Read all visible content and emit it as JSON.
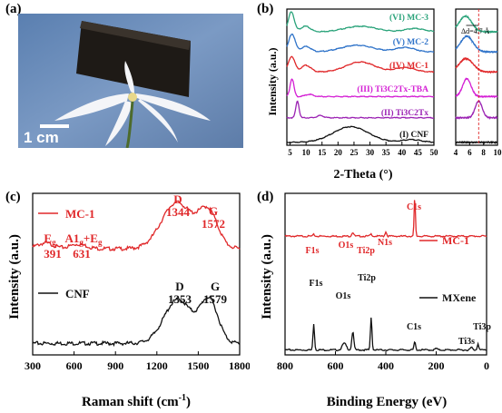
{
  "panels": {
    "a": {
      "label": "(a)",
      "scalebar": "1 cm"
    },
    "b": {
      "label": "(b)",
      "ylabel": "Intensity (a.u.)",
      "xlabel": "2-Theta (°)",
      "annotation": "Δd=4.7 Å",
      "colors": {
        "MC3": "#2aa37a",
        "MC2": "#2f73c9",
        "MC1": "#e0282a",
        "TBA": "#d41fd4",
        "TiCT": "#9b22b3",
        "CNF": "#111111"
      }
    },
    "c": {
      "label": "(c)",
      "ylabel": "Intensity (a.u.)",
      "xlabel": "Raman shift (cm",
      "xlabel_sup": "-1",
      "xlabel_end": ")",
      "peaks_mc1": {
        "D": "D",
        "D_val": "1344",
        "G": "G",
        "G_val": "1572",
        "Eg": "E",
        "Eg_sub": "g",
        "Eg_val": "391",
        "A1g": "A1",
        "A1g_sub": "g",
        "A1g_plus": "+E",
        "A1g_sub2": "g",
        "A1g_val": "631"
      },
      "peaks_cnf": {
        "D": "D",
        "D_val": "1353",
        "G": "G",
        "G_val": "1579"
      }
    },
    "d": {
      "label": "(d)",
      "ylabel": "Intensity (a.u.)",
      "xlabel": "Binding Energy (eV)",
      "mc1_labels": {
        "C1s": "C1s",
        "F1s": "F1s",
        "O1s": "O1s",
        "Ti2p": "Ti2p",
        "N1s": "N1s"
      },
      "mx_labels": {
        "F1s": "F1s",
        "O1s": "O1s",
        "Ti2p": "Ti2p",
        "C1s": "C1s",
        "Ti3s": "Ti3s",
        "Ti3p": "Ti3p"
      }
    }
  },
  "chart_data": [
    {
      "panel": "b-main",
      "type": "line",
      "xlabel": "2-Theta (°)",
      "ylabel": "Intensity (a.u.)",
      "xlim": [
        4,
        50
      ],
      "xticks": [
        5,
        10,
        15,
        20,
        25,
        30,
        35,
        40,
        45,
        50
      ],
      "series": [
        {
          "name": "(VI) MC-3",
          "color": "#2aa37a",
          "offset": 5.0,
          "peaks": [
            [
              5.4,
              0.9,
              0.9
            ],
            [
              9.8,
              0.25,
              1.5
            ],
            [
              27,
              0.25,
              5
            ],
            [
              44,
              0.15,
              3
            ]
          ]
        },
        {
          "name": "(V) MC-2",
          "color": "#2f73c9",
          "offset": 4.1,
          "peaks": [
            [
              5.6,
              0.8,
              1.0
            ],
            [
              10,
              0.25,
              1.5
            ],
            [
              26,
              0.3,
              5
            ],
            [
              41,
              0.2,
              3
            ]
          ]
        },
        {
          "name": "(IV) MC-1",
          "color": "#e0282a",
          "offset": 3.2,
          "peaks": [
            [
              5.5,
              0.7,
              1.0
            ],
            [
              10,
              0.3,
              1.5
            ],
            [
              27,
              0.45,
              4.5
            ],
            [
              41,
              0.2,
              3
            ]
          ]
        },
        {
          "name": "(III) Ti3C2Tx-TBA",
          "color": "#d41fd4",
          "offset": 2.1,
          "peaks": [
            [
              5.6,
              0.8,
              0.6
            ],
            [
              11,
              0.1,
              1.2
            ]
          ]
        },
        {
          "name": "(II) Ti3C2Tx",
          "color": "#9b22b3",
          "offset": 1.15,
          "peaks": [
            [
              7.3,
              0.75,
              0.5
            ],
            [
              14.5,
              0.1,
              1.0
            ]
          ]
        },
        {
          "name": "(I) CNF",
          "color": "#111111",
          "offset": 0.05,
          "peaks": [
            [
              24,
              0.7,
              5.5
            ],
            [
              43,
              0.12,
              3
            ]
          ]
        }
      ]
    },
    {
      "panel": "b-inset",
      "type": "line",
      "xlim": [
        4,
        10
      ],
      "xticks": [
        4,
        6,
        8,
        10
      ],
      "dashed_x": 7.3,
      "arrow_x": [
        5.5,
        7.3
      ],
      "series": [
        {
          "color": "#2aa37a",
          "offset": 5.0,
          "peaks": [
            [
              5.4,
              0.7,
              0.9
            ]
          ]
        },
        {
          "color": "#2f73c9",
          "offset": 4.1,
          "peaks": [
            [
              5.6,
              0.7,
              0.9
            ]
          ]
        },
        {
          "color": "#e0282a",
          "offset": 3.2,
          "peaks": [
            [
              5.5,
              0.6,
              1.0
            ]
          ]
        },
        {
          "color": "#d41fd4",
          "offset": 2.1,
          "peaks": [
            [
              5.6,
              0.8,
              0.6
            ]
          ]
        },
        {
          "color": "#9b22b3",
          "offset": 1.15,
          "peaks": [
            [
              7.3,
              0.75,
              0.5
            ]
          ]
        },
        {
          "color": "#111111",
          "offset": 0.05,
          "peaks": []
        }
      ]
    },
    {
      "panel": "c",
      "type": "line",
      "xlabel": "Raman shift (cm-1)",
      "ylabel": "Intensity (a.u.)",
      "xlim": [
        300,
        1800
      ],
      "xticks": [
        300,
        600,
        900,
        1200,
        1500,
        1800
      ],
      "series": [
        {
          "name": "MC-1",
          "color": "#e0282a",
          "offset": 2.2,
          "peaks": [
            [
              391,
              0.12,
              60
            ],
            [
              631,
              0.1,
              60
            ],
            [
              1344,
              1.0,
              110
            ],
            [
              1572,
              0.78,
              70
            ]
          ]
        },
        {
          "name": "CNF",
          "color": "#111111",
          "offset": 0.15,
          "peaks": [
            [
              1353,
              0.95,
              100
            ],
            [
              1579,
              0.92,
              65
            ]
          ]
        }
      ]
    },
    {
      "panel": "d",
      "type": "line",
      "xlabel": "Binding Energy (eV)",
      "ylabel": "Intensity (a.u.)",
      "xlim": [
        800,
        0
      ],
      "xticks": [
        800,
        600,
        400,
        200,
        0
      ],
      "series": [
        {
          "name": "MC-1",
          "color": "#e0282a",
          "offset": 3.5,
          "peaks": [
            [
              686,
              0.05,
              3
            ],
            [
              531,
              0.12,
              4
            ],
            [
              458,
              0.06,
              4
            ],
            [
              400,
              0.14,
              3
            ],
            [
              285,
              1.2,
              2.5
            ]
          ]
        },
        {
          "name": "MXene",
          "color": "#111111",
          "offset": 0.05,
          "peaks": [
            [
              686,
              0.8,
              3
            ],
            [
              565,
              0.2,
              8
            ],
            [
              531,
              0.55,
              4
            ],
            [
              458,
              1.0,
              3
            ],
            [
              285,
              0.25,
              3
            ],
            [
              200,
              0.05,
              4
            ],
            [
              60,
              0.08,
              4
            ],
            [
              34,
              0.2,
              3
            ]
          ]
        }
      ]
    }
  ]
}
